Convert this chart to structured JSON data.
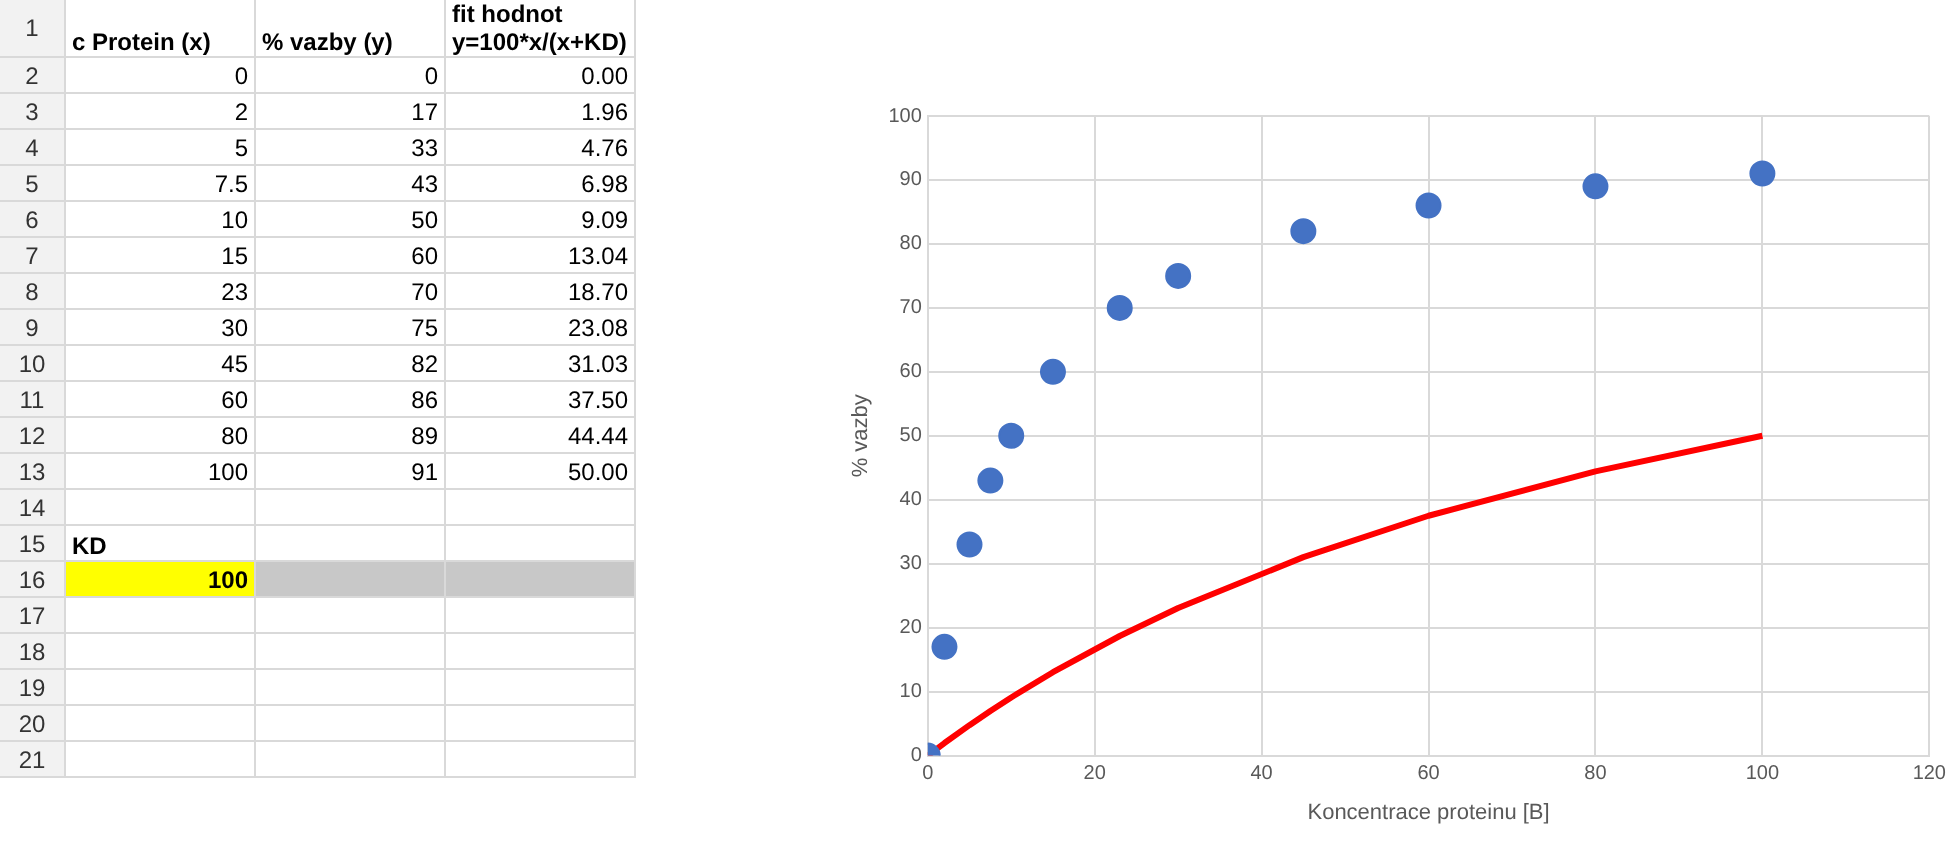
{
  "chart_data": [
    {
      "type": "other",
      "y_categories": [
        "1",
        "2",
        "3",
        "4",
        "5",
        "6",
        "7",
        "8",
        "9",
        "10",
        "11",
        "12",
        "13",
        "14",
        "15",
        "16",
        "17",
        "18",
        "19",
        "20",
        "21"
      ],
      "cell_labels": [
        [
          "c Protein (x)",
          "% vazby (y)",
          "fit hodnot\ny=100*x/(x+KD)"
        ],
        [
          "0",
          "0",
          "0.00"
        ],
        [
          "2",
          "17",
          "1.96"
        ],
        [
          "5",
          "33",
          "4.76"
        ],
        [
          "7.5",
          "43",
          "6.98"
        ],
        [
          "10",
          "50",
          "9.09"
        ],
        [
          "15",
          "60",
          "13.04"
        ],
        [
          "23",
          "70",
          "18.70"
        ],
        [
          "30",
          "75",
          "23.08"
        ],
        [
          "45",
          "82",
          "31.03"
        ],
        [
          "60",
          "86",
          "37.50"
        ],
        [
          "80",
          "89",
          "44.44"
        ],
        [
          "100",
          "91",
          "50.00"
        ],
        [
          null,
          null,
          null
        ],
        [
          "KD",
          null,
          null
        ],
        [
          "100",
          null,
          null
        ],
        [
          null,
          null,
          null
        ],
        [
          null,
          null,
          null
        ],
        [
          null,
          null,
          null
        ],
        [
          null,
          null,
          null
        ],
        [
          null,
          null,
          null
        ]
      ]
    },
    {
      "type": "scatter",
      "xlabel": "Koncentrace proteinu [B]",
      "ylabel": "% vazby",
      "x": [
        0,
        2,
        5,
        7.5,
        10,
        15,
        23,
        30,
        45,
        60,
        80,
        100
      ],
      "series": [
        {
          "type": "scatter",
          "color": "#4472c4",
          "marker": "circle",
          "values": [
            0,
            17,
            33,
            43,
            50,
            60,
            70,
            75,
            82,
            86,
            89,
            91
          ]
        },
        {
          "type": "line",
          "color": "#ff0000",
          "marker": "none",
          "line_style": "solid",
          "values": [
            0,
            1.96,
            4.76,
            6.98,
            9.09,
            13.04,
            18.7,
            23.08,
            31.03,
            37.5,
            44.44,
            50
          ]
        }
      ],
      "xlim": [
        0,
        120
      ],
      "xticks": [
        0,
        20,
        40,
        60,
        80,
        100,
        120
      ],
      "ylim": [
        0,
        100
      ],
      "yticks": [
        0,
        10,
        20,
        30,
        40,
        50,
        60,
        70,
        80,
        90,
        100
      ],
      "grid": true,
      "legend": false
    }
  ]
}
